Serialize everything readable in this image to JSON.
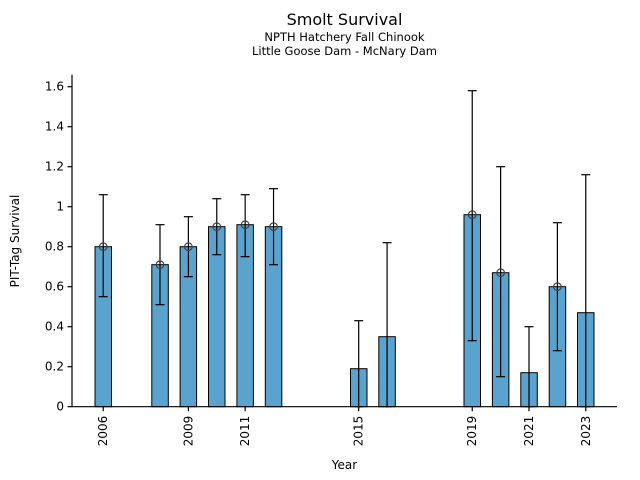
{
  "chart_data": {
    "type": "bar",
    "title": "Smolt Survival",
    "subtitle_line1": "NPTH Hatchery Fall Chinook",
    "subtitle_line2": "Little Goose Dam - McNary Dam",
    "xlabel": "Year",
    "ylabel": "PIT-Tag Survival",
    "xlim": [
      2004.9,
      2024.1
    ],
    "ylim": [
      0,
      1.66
    ],
    "grid": false,
    "legend": null,
    "bar_color": "#5ba3cf",
    "bar_edge_color": "#000000",
    "error_color": "#000000",
    "marker_style": "open-circle",
    "marker_color": "#3d3d3d",
    "bar_width_years": 0.58,
    "yticks": [
      0,
      0.2,
      0.4,
      0.6,
      0.8,
      1,
      1.2,
      1.4,
      1.6
    ],
    "ytick_labels": [
      "0",
      "0.2",
      "0.4",
      "0.6",
      "0.8",
      "1",
      "1.2",
      "1.4",
      "1.6"
    ],
    "xticks": [
      2006,
      2009,
      2011,
      2015,
      2019,
      2021,
      2023
    ],
    "xtick_labels": [
      "2006",
      "2009",
      "2011",
      "2015",
      "2019",
      "2021",
      "2023"
    ],
    "series": [
      {
        "year": 2006,
        "value": 0.8,
        "ci_low": 0.55,
        "ci_high": 1.06,
        "marker": true
      },
      {
        "year": 2008,
        "value": 0.71,
        "ci_low": 0.51,
        "ci_high": 0.91,
        "marker": true
      },
      {
        "year": 2009,
        "value": 0.8,
        "ci_low": 0.65,
        "ci_high": 0.95,
        "marker": true
      },
      {
        "year": 2010,
        "value": 0.9,
        "ci_low": 0.76,
        "ci_high": 1.04,
        "marker": true
      },
      {
        "year": 2011,
        "value": 0.91,
        "ci_low": 0.75,
        "ci_high": 1.06,
        "marker": true
      },
      {
        "year": 2012,
        "value": 0.9,
        "ci_low": 0.71,
        "ci_high": 1.09,
        "marker": true
      },
      {
        "year": 2015,
        "value": 0.19,
        "ci_low": 0.0,
        "ci_high": 0.43,
        "marker": false
      },
      {
        "year": 2016,
        "value": 0.35,
        "ci_low": 0.0,
        "ci_high": 0.82,
        "marker": false
      },
      {
        "year": 2019,
        "value": 0.96,
        "ci_low": 0.33,
        "ci_high": 1.58,
        "marker": true
      },
      {
        "year": 2020,
        "value": 0.67,
        "ci_low": 0.15,
        "ci_high": 1.2,
        "marker": true
      },
      {
        "year": 2021,
        "value": 0.17,
        "ci_low": 0.0,
        "ci_high": 0.4,
        "marker": false
      },
      {
        "year": 2022,
        "value": 0.6,
        "ci_low": 0.28,
        "ci_high": 0.92,
        "marker": true
      },
      {
        "year": 2023,
        "value": 0.47,
        "ci_low": 0.0,
        "ci_high": 1.16,
        "marker": false
      }
    ]
  }
}
